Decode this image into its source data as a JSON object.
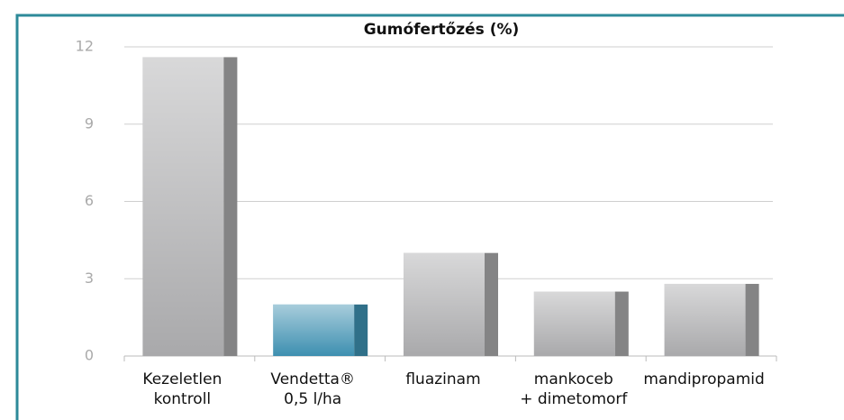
{
  "chart_data": {
    "type": "bar",
    "title": "Gumófertőzés (%)",
    "categories": [
      "Kezeletlen\nkontroll",
      "Vendetta®\n0,5 l/ha",
      "fluazinam",
      "mankoceb\n+ dimetomorf",
      "mandipropamid"
    ],
    "values": [
      11.6,
      2.0,
      4.0,
      2.5,
      2.8
    ],
    "colors": [
      "#a9a9ab",
      "#3d8fb0",
      "#a9a9ab",
      "#a9a9ab",
      "#a9a9ab"
    ],
    "ylim": [
      0,
      12
    ],
    "yticks": [
      0,
      3,
      6,
      9,
      12
    ],
    "grid": true
  }
}
